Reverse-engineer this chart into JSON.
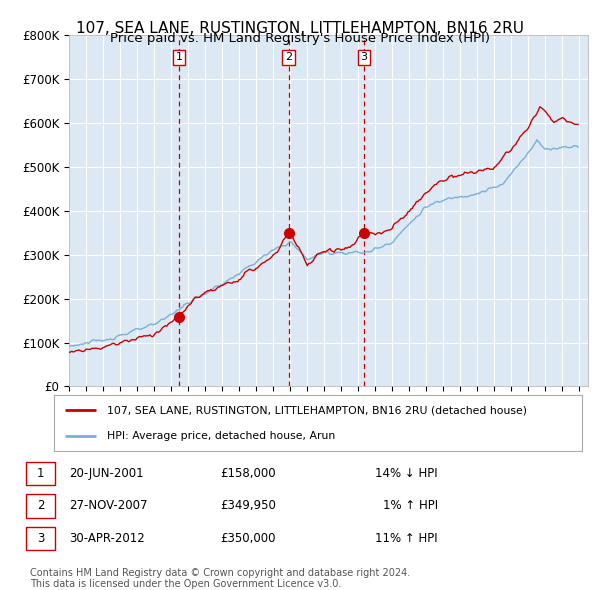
{
  "title": "107, SEA LANE, RUSTINGTON, LITTLEHAMPTON, BN16 2RU",
  "subtitle": "Price paid vs. HM Land Registry's House Price Index (HPI)",
  "ylabel_ticks": [
    "£0",
    "£100K",
    "£200K",
    "£300K",
    "£400K",
    "£500K",
    "£600K",
    "£700K",
    "£800K"
  ],
  "ytick_vals": [
    0,
    100000,
    200000,
    300000,
    400000,
    500000,
    600000,
    700000,
    800000
  ],
  "ylim": [
    0,
    800000
  ],
  "xlim_start": 1995.0,
  "xlim_end": 2025.5,
  "sale_dates": [
    2001.47,
    2007.91,
    2012.33
  ],
  "sale_prices": [
    158000,
    349950,
    350000
  ],
  "sale_labels": [
    "1",
    "2",
    "3"
  ],
  "legend_entries": [
    "107, SEA LANE, RUSTINGTON, LITTLEHAMPTON, BN16 2RU (detached house)",
    "HPI: Average price, detached house, Arun"
  ],
  "table_rows": [
    [
      "1",
      "20-JUN-2001",
      "£158,000",
      "14% ↓ HPI"
    ],
    [
      "2",
      "27-NOV-2007",
      "£349,950",
      "1% ↑ HPI"
    ],
    [
      "3",
      "30-APR-2012",
      "£350,000",
      "11% ↑ HPI"
    ]
  ],
  "footnote1": "Contains HM Land Registry data © Crown copyright and database right 2024.",
  "footnote2": "This data is licensed under the Open Government Licence v3.0.",
  "line_color_red": "#cc0000",
  "line_color_blue": "#7ab0d4",
  "dashed_line_color": "#cc0000",
  "background_color": "#ffffff",
  "chart_bg_color": "#dce9f5",
  "grid_color": "#ffffff",
  "title_fontsize": 11,
  "tick_fontsize": 8.5
}
